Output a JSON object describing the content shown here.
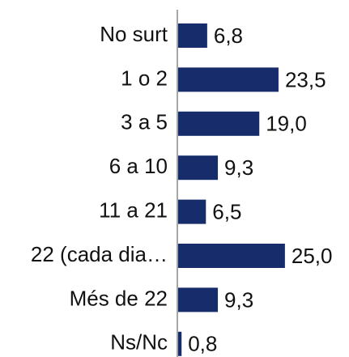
{
  "chart_data": {
    "type": "hbar",
    "categories": [
      "No surt",
      "1 o 2",
      "3 a 5",
      "6 a 10",
      "11 a 21",
      "22 (cada dia…",
      "Més de 22",
      "Ns/Nc"
    ],
    "values": [
      6.8,
      23.5,
      19.0,
      9.3,
      6.5,
      25.0,
      9.3,
      0.8
    ],
    "value_labels": [
      "6,8",
      "23,5",
      "19,0",
      "9,3",
      "6,5",
      "25,0",
      "9,3",
      "0,8"
    ],
    "color": "#172c6b",
    "xlim": [
      0,
      40
    ]
  }
}
